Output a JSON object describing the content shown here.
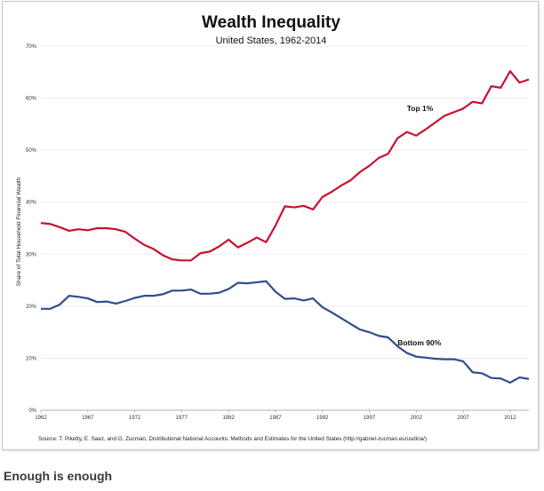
{
  "caption": "Enough is enough",
  "chart_data": {
    "type": "line",
    "title": "Wealth Inequality",
    "subtitle": "United States, 1962-2014",
    "ylabel": "Share of Total Household Financial Wealth",
    "xlabel": "",
    "source": "Source: T. Piketty, E. Saez, and G. Zucman,  Distributional National Accounts: Methods and Estimates for the United States (http://gabriel-zucman.eu/usdina/)",
    "xlim": [
      1962,
      2014
    ],
    "ylim": [
      0,
      70
    ],
    "x_ticks": [
      1962,
      1967,
      1972,
      1977,
      1982,
      1987,
      1992,
      1997,
      2002,
      2007,
      2012
    ],
    "y_ticks": [
      0,
      10,
      20,
      30,
      40,
      50,
      60,
      70
    ],
    "y_tick_labels": [
      "0%",
      "10%",
      "20%",
      "30%",
      "40%",
      "50%",
      "60%",
      "70%"
    ],
    "grid": "horizontal",
    "x": [
      1962,
      1963,
      1964,
      1965,
      1966,
      1967,
      1968,
      1969,
      1970,
      1971,
      1972,
      1973,
      1974,
      1975,
      1976,
      1977,
      1978,
      1979,
      1980,
      1981,
      1982,
      1983,
      1984,
      1985,
      1986,
      1987,
      1988,
      1989,
      1990,
      1991,
      1992,
      1993,
      1994,
      1995,
      1996,
      1997,
      1998,
      1999,
      2000,
      2001,
      2002,
      2003,
      2004,
      2005,
      2006,
      2007,
      2008,
      2009,
      2010,
      2011,
      2012,
      2013,
      2014
    ],
    "series": [
      {
        "name": "Top 1%",
        "color": "#c8102e",
        "values": [
          36.0,
          35.8,
          35.2,
          34.5,
          34.8,
          34.6,
          35.0,
          35.0,
          34.8,
          34.3,
          33.0,
          31.8,
          31.0,
          29.8,
          29.0,
          28.8,
          28.8,
          30.2,
          30.5,
          31.5,
          32.8,
          31.3,
          32.2,
          33.2,
          32.3,
          35.5,
          39.2,
          39.0,
          39.3,
          38.6,
          41.0,
          42.0,
          43.2,
          44.2,
          45.8,
          47.0,
          48.5,
          49.3,
          52.3,
          53.5,
          52.8,
          54.0,
          55.3,
          56.6,
          57.3,
          58.0,
          59.3,
          59.0,
          62.3,
          62.0,
          65.2,
          63.0,
          63.6
        ]
      },
      {
        "name": "Bottom 90%",
        "color": "#2e4e8c",
        "values": [
          19.5,
          19.5,
          20.3,
          22.0,
          21.8,
          21.5,
          20.8,
          20.9,
          20.5,
          21.0,
          21.6,
          22.0,
          22.0,
          22.3,
          23.0,
          23.0,
          23.2,
          22.4,
          22.4,
          22.6,
          23.3,
          24.5,
          24.4,
          24.6,
          24.8,
          22.8,
          21.4,
          21.5,
          21.1,
          21.5,
          19.8,
          18.8,
          17.7,
          16.6,
          15.5,
          15.0,
          14.3,
          14.0,
          12.3,
          11.0,
          10.3,
          10.1,
          9.9,
          9.8,
          9.8,
          9.4,
          7.3,
          7.1,
          6.2,
          6.1,
          5.3,
          6.3,
          6.0
        ]
      }
    ],
    "annotations": [
      {
        "text": "Top 1%",
        "x": 2001,
        "y": 57.5
      },
      {
        "text": "Bottom 90%",
        "x": 2000,
        "y": 12.5
      }
    ]
  }
}
